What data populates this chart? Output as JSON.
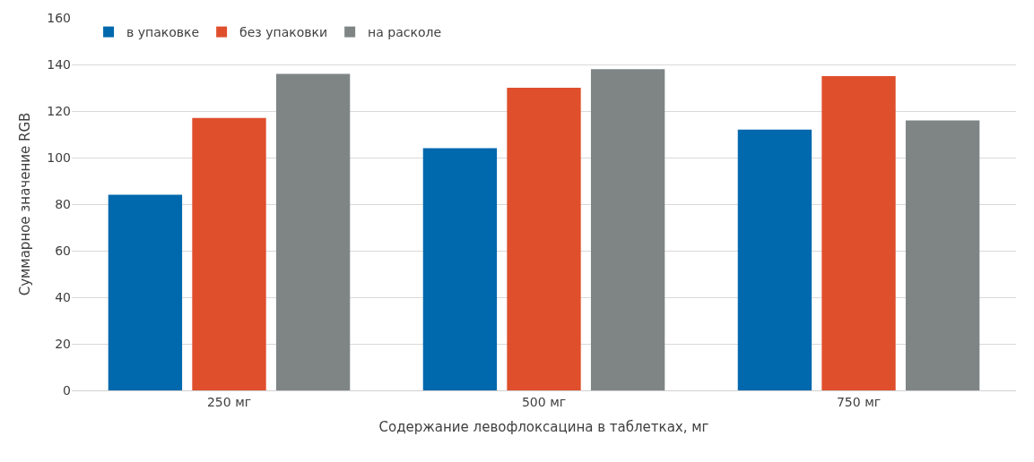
{
  "chart_data": {
    "type": "bar",
    "xlabel": "Содержание левофлоксацина в таблетках, мг",
    "ylabel": "Суммарное значение RGB",
    "categories": [
      "250 мг",
      "500 мг",
      "750 мг"
    ],
    "series": [
      {
        "name": "в упаковке",
        "color": "#0068ad",
        "values": [
          84,
          104,
          112
        ]
      },
      {
        "name": "без упаковки",
        "color": "#df4f2c",
        "values": [
          117,
          130,
          135
        ]
      },
      {
        "name": "на расколе",
        "color": "#7f8585",
        "values": [
          136,
          138,
          116
        ]
      }
    ],
    "ylim": [
      0,
      160
    ],
    "yticks": [
      0,
      20,
      40,
      60,
      80,
      100,
      120,
      140,
      160
    ],
    "grid": "y",
    "legend": "top left"
  }
}
